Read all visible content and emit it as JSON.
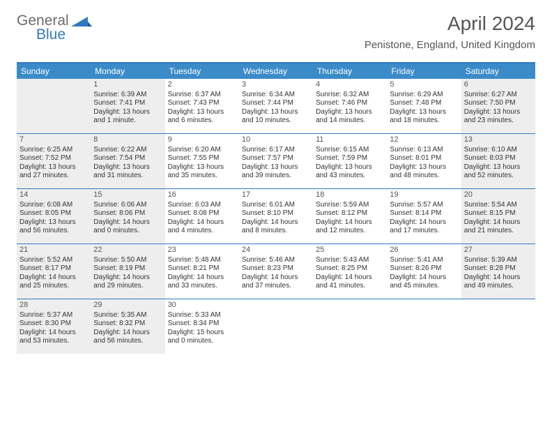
{
  "brand": {
    "word1": "General",
    "word2": "Blue",
    "word1_color": "#6b6b6b",
    "word2_color": "#2f7ac0",
    "triangle_color": "#2f7ac0"
  },
  "title": "April 2024",
  "subtitle": "Penistone, England, United Kingdom",
  "colors": {
    "header_bg": "#3b8bc9",
    "header_border": "#2f7ac0",
    "row_border": "#2f7ac0",
    "shade_bg": "#eeeeee",
    "text": "#333333",
    "title_text": "#555555"
  },
  "day_headers": [
    "Sunday",
    "Monday",
    "Tuesday",
    "Wednesday",
    "Thursday",
    "Friday",
    "Saturday"
  ],
  "weeks": [
    [
      {
        "n": "",
        "shade": true,
        "sr": "",
        "ss": "",
        "dl1": "",
        "dl2": ""
      },
      {
        "n": "1",
        "shade": true,
        "sr": "Sunrise: 6:39 AM",
        "ss": "Sunset: 7:41 PM",
        "dl1": "Daylight: 13 hours",
        "dl2": "and 1 minute."
      },
      {
        "n": "2",
        "shade": false,
        "sr": "Sunrise: 6:37 AM",
        "ss": "Sunset: 7:43 PM",
        "dl1": "Daylight: 13 hours",
        "dl2": "and 6 minutes."
      },
      {
        "n": "3",
        "shade": false,
        "sr": "Sunrise: 6:34 AM",
        "ss": "Sunset: 7:44 PM",
        "dl1": "Daylight: 13 hours",
        "dl2": "and 10 minutes."
      },
      {
        "n": "4",
        "shade": false,
        "sr": "Sunrise: 6:32 AM",
        "ss": "Sunset: 7:46 PM",
        "dl1": "Daylight: 13 hours",
        "dl2": "and 14 minutes."
      },
      {
        "n": "5",
        "shade": false,
        "sr": "Sunrise: 6:29 AM",
        "ss": "Sunset: 7:48 PM",
        "dl1": "Daylight: 13 hours",
        "dl2": "and 18 minutes."
      },
      {
        "n": "6",
        "shade": true,
        "sr": "Sunrise: 6:27 AM",
        "ss": "Sunset: 7:50 PM",
        "dl1": "Daylight: 13 hours",
        "dl2": "and 23 minutes."
      }
    ],
    [
      {
        "n": "7",
        "shade": true,
        "sr": "Sunrise: 6:25 AM",
        "ss": "Sunset: 7:52 PM",
        "dl1": "Daylight: 13 hours",
        "dl2": "and 27 minutes."
      },
      {
        "n": "8",
        "shade": true,
        "sr": "Sunrise: 6:22 AM",
        "ss": "Sunset: 7:54 PM",
        "dl1": "Daylight: 13 hours",
        "dl2": "and 31 minutes."
      },
      {
        "n": "9",
        "shade": false,
        "sr": "Sunrise: 6:20 AM",
        "ss": "Sunset: 7:55 PM",
        "dl1": "Daylight: 13 hours",
        "dl2": "and 35 minutes."
      },
      {
        "n": "10",
        "shade": false,
        "sr": "Sunrise: 6:17 AM",
        "ss": "Sunset: 7:57 PM",
        "dl1": "Daylight: 13 hours",
        "dl2": "and 39 minutes."
      },
      {
        "n": "11",
        "shade": false,
        "sr": "Sunrise: 6:15 AM",
        "ss": "Sunset: 7:59 PM",
        "dl1": "Daylight: 13 hours",
        "dl2": "and 43 minutes."
      },
      {
        "n": "12",
        "shade": false,
        "sr": "Sunrise: 6:13 AM",
        "ss": "Sunset: 8:01 PM",
        "dl1": "Daylight: 13 hours",
        "dl2": "and 48 minutes."
      },
      {
        "n": "13",
        "shade": true,
        "sr": "Sunrise: 6:10 AM",
        "ss": "Sunset: 8:03 PM",
        "dl1": "Daylight: 13 hours",
        "dl2": "and 52 minutes."
      }
    ],
    [
      {
        "n": "14",
        "shade": true,
        "sr": "Sunrise: 6:08 AM",
        "ss": "Sunset: 8:05 PM",
        "dl1": "Daylight: 13 hours",
        "dl2": "and 56 minutes."
      },
      {
        "n": "15",
        "shade": true,
        "sr": "Sunrise: 6:06 AM",
        "ss": "Sunset: 8:06 PM",
        "dl1": "Daylight: 14 hours",
        "dl2": "and 0 minutes."
      },
      {
        "n": "16",
        "shade": false,
        "sr": "Sunrise: 6:03 AM",
        "ss": "Sunset: 8:08 PM",
        "dl1": "Daylight: 14 hours",
        "dl2": "and 4 minutes."
      },
      {
        "n": "17",
        "shade": false,
        "sr": "Sunrise: 6:01 AM",
        "ss": "Sunset: 8:10 PM",
        "dl1": "Daylight: 14 hours",
        "dl2": "and 8 minutes."
      },
      {
        "n": "18",
        "shade": false,
        "sr": "Sunrise: 5:59 AM",
        "ss": "Sunset: 8:12 PM",
        "dl1": "Daylight: 14 hours",
        "dl2": "and 12 minutes."
      },
      {
        "n": "19",
        "shade": false,
        "sr": "Sunrise: 5:57 AM",
        "ss": "Sunset: 8:14 PM",
        "dl1": "Daylight: 14 hours",
        "dl2": "and 17 minutes."
      },
      {
        "n": "20",
        "shade": true,
        "sr": "Sunrise: 5:54 AM",
        "ss": "Sunset: 8:15 PM",
        "dl1": "Daylight: 14 hours",
        "dl2": "and 21 minutes."
      }
    ],
    [
      {
        "n": "21",
        "shade": true,
        "sr": "Sunrise: 5:52 AM",
        "ss": "Sunset: 8:17 PM",
        "dl1": "Daylight: 14 hours",
        "dl2": "and 25 minutes."
      },
      {
        "n": "22",
        "shade": true,
        "sr": "Sunrise: 5:50 AM",
        "ss": "Sunset: 8:19 PM",
        "dl1": "Daylight: 14 hours",
        "dl2": "and 29 minutes."
      },
      {
        "n": "23",
        "shade": false,
        "sr": "Sunrise: 5:48 AM",
        "ss": "Sunset: 8:21 PM",
        "dl1": "Daylight: 14 hours",
        "dl2": "and 33 minutes."
      },
      {
        "n": "24",
        "shade": false,
        "sr": "Sunrise: 5:46 AM",
        "ss": "Sunset: 8:23 PM",
        "dl1": "Daylight: 14 hours",
        "dl2": "and 37 minutes."
      },
      {
        "n": "25",
        "shade": false,
        "sr": "Sunrise: 5:43 AM",
        "ss": "Sunset: 8:25 PM",
        "dl1": "Daylight: 14 hours",
        "dl2": "and 41 minutes."
      },
      {
        "n": "26",
        "shade": false,
        "sr": "Sunrise: 5:41 AM",
        "ss": "Sunset: 8:26 PM",
        "dl1": "Daylight: 14 hours",
        "dl2": "and 45 minutes."
      },
      {
        "n": "27",
        "shade": true,
        "sr": "Sunrise: 5:39 AM",
        "ss": "Sunset: 8:28 PM",
        "dl1": "Daylight: 14 hours",
        "dl2": "and 49 minutes."
      }
    ],
    [
      {
        "n": "28",
        "shade": true,
        "sr": "Sunrise: 5:37 AM",
        "ss": "Sunset: 8:30 PM",
        "dl1": "Daylight: 14 hours",
        "dl2": "and 53 minutes."
      },
      {
        "n": "29",
        "shade": true,
        "sr": "Sunrise: 5:35 AM",
        "ss": "Sunset: 8:32 PM",
        "dl1": "Daylight: 14 hours",
        "dl2": "and 56 minutes."
      },
      {
        "n": "30",
        "shade": false,
        "sr": "Sunrise: 5:33 AM",
        "ss": "Sunset: 8:34 PM",
        "dl1": "Daylight: 15 hours",
        "dl2": "and 0 minutes."
      },
      {
        "n": "",
        "shade": false,
        "sr": "",
        "ss": "",
        "dl1": "",
        "dl2": ""
      },
      {
        "n": "",
        "shade": false,
        "sr": "",
        "ss": "",
        "dl1": "",
        "dl2": ""
      },
      {
        "n": "",
        "shade": false,
        "sr": "",
        "ss": "",
        "dl1": "",
        "dl2": ""
      },
      {
        "n": "",
        "shade": false,
        "sr": "",
        "ss": "",
        "dl1": "",
        "dl2": ""
      }
    ]
  ]
}
